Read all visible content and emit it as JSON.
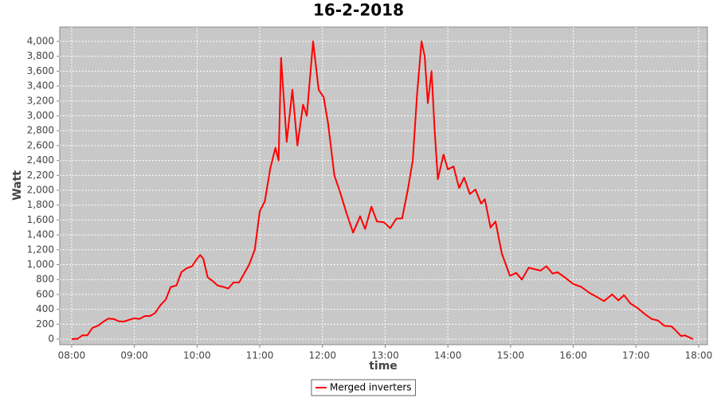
{
  "chart_data": {
    "type": "line",
    "title": "16-2-2018",
    "x_label": "time",
    "y_label": "Watt",
    "x": [
      8.0,
      8.1,
      8.17,
      8.25,
      8.33,
      8.42,
      8.5,
      8.58,
      8.67,
      8.75,
      8.83,
      8.92,
      9.0,
      9.08,
      9.17,
      9.25,
      9.33,
      9.42,
      9.5,
      9.58,
      9.67,
      9.75,
      9.83,
      9.92,
      10.0,
      10.05,
      10.1,
      10.17,
      10.25,
      10.33,
      10.42,
      10.5,
      10.58,
      10.67,
      10.75,
      10.83,
      10.92,
      11.0,
      11.08,
      11.17,
      11.25,
      11.3,
      11.34,
      11.43,
      11.52,
      11.6,
      11.69,
      11.75,
      11.85,
      11.94,
      12.02,
      12.09,
      12.19,
      12.29,
      12.38,
      12.49,
      12.6,
      12.68,
      12.78,
      12.87,
      12.98,
      13.08,
      13.18,
      13.27,
      13.36,
      13.44,
      13.51,
      13.58,
      13.63,
      13.68,
      13.74,
      13.79,
      13.84,
      13.93,
      14.0,
      14.09,
      14.18,
      14.26,
      14.35,
      14.44,
      14.53,
      14.59,
      14.68,
      14.76,
      14.86,
      14.99,
      15.09,
      15.18,
      15.29,
      15.38,
      15.48,
      15.57,
      15.67,
      15.75,
      15.88,
      16.0,
      16.13,
      16.26,
      16.39,
      16.49,
      16.62,
      16.72,
      16.81,
      16.91,
      17.02,
      17.15,
      17.25,
      17.35,
      17.45,
      17.57,
      17.63,
      17.72,
      17.78,
      17.91
    ],
    "series": [
      {
        "name": "Merged inverters",
        "color": "#ff0000",
        "values": [
          0,
          5,
          50,
          50,
          150,
          180,
          230,
          275,
          270,
          240,
          235,
          260,
          280,
          270,
          310,
          310,
          350,
          460,
          530,
          700,
          720,
          900,
          950,
          980,
          1080,
          1130,
          1080,
          830,
          780,
          720,
          700,
          680,
          760,
          760,
          880,
          1000,
          1200,
          1720,
          1850,
          2300,
          2570,
          2400,
          3780,
          2650,
          3350,
          2600,
          3150,
          3000,
          4000,
          3350,
          3250,
          2900,
          2200,
          1950,
          1700,
          1430,
          1650,
          1480,
          1780,
          1580,
          1570,
          1490,
          1620,
          1620,
          2000,
          2400,
          3300,
          4000,
          3800,
          3170,
          3600,
          2800,
          2150,
          2480,
          2280,
          2320,
          2030,
          2170,
          1950,
          2010,
          1820,
          1880,
          1500,
          1580,
          1150,
          850,
          890,
          800,
          960,
          940,
          920,
          980,
          880,
          900,
          820,
          740,
          700,
          620,
          560,
          510,
          600,
          520,
          590,
          480,
          420,
          330,
          270,
          250,
          180,
          170,
          120,
          40,
          50,
          0
        ]
      }
    ],
    "xlim": [
      7.81,
      18.14
    ],
    "ylim": [
      -75,
      4193
    ],
    "xticks": [
      {
        "value": 8,
        "label": "08:00"
      },
      {
        "value": 9,
        "label": "09:00"
      },
      {
        "value": 10,
        "label": "10:00"
      },
      {
        "value": 11,
        "label": "11:00"
      },
      {
        "value": 12,
        "label": "12:00"
      },
      {
        "value": 13,
        "label": "13:00"
      },
      {
        "value": 14,
        "label": "14:00"
      },
      {
        "value": 15,
        "label": "15:00"
      },
      {
        "value": 16,
        "label": "16:00"
      },
      {
        "value": 17,
        "label": "17:00"
      },
      {
        "value": 18,
        "label": "18:00"
      }
    ],
    "yticks": [
      0,
      200,
      400,
      600,
      800,
      {
        "value": 1000,
        "label": "1,000"
      },
      {
        "value": 1200,
        "label": "1,200"
      },
      {
        "value": 1400,
        "label": "1,400"
      },
      {
        "value": 1600,
        "label": "1,600"
      },
      {
        "value": 1800,
        "label": "1,800"
      },
      {
        "value": 2000,
        "label": "2,000"
      },
      {
        "value": 2200,
        "label": "2,200"
      },
      {
        "value": 2400,
        "label": "2,400"
      },
      {
        "value": 2600,
        "label": "2,600"
      },
      {
        "value": 2800,
        "label": "2,800"
      },
      {
        "value": 3000,
        "label": "3,000"
      },
      {
        "value": 3200,
        "label": "3,200"
      },
      {
        "value": 3400,
        "label": "3,400"
      },
      {
        "value": 3600,
        "label": "3,600"
      },
      {
        "value": 3800,
        "label": "3,800"
      },
      {
        "value": 4000,
        "label": "4,000"
      }
    ],
    "grid": true,
    "legend": "bottom",
    "background": "#c8c8c8"
  }
}
